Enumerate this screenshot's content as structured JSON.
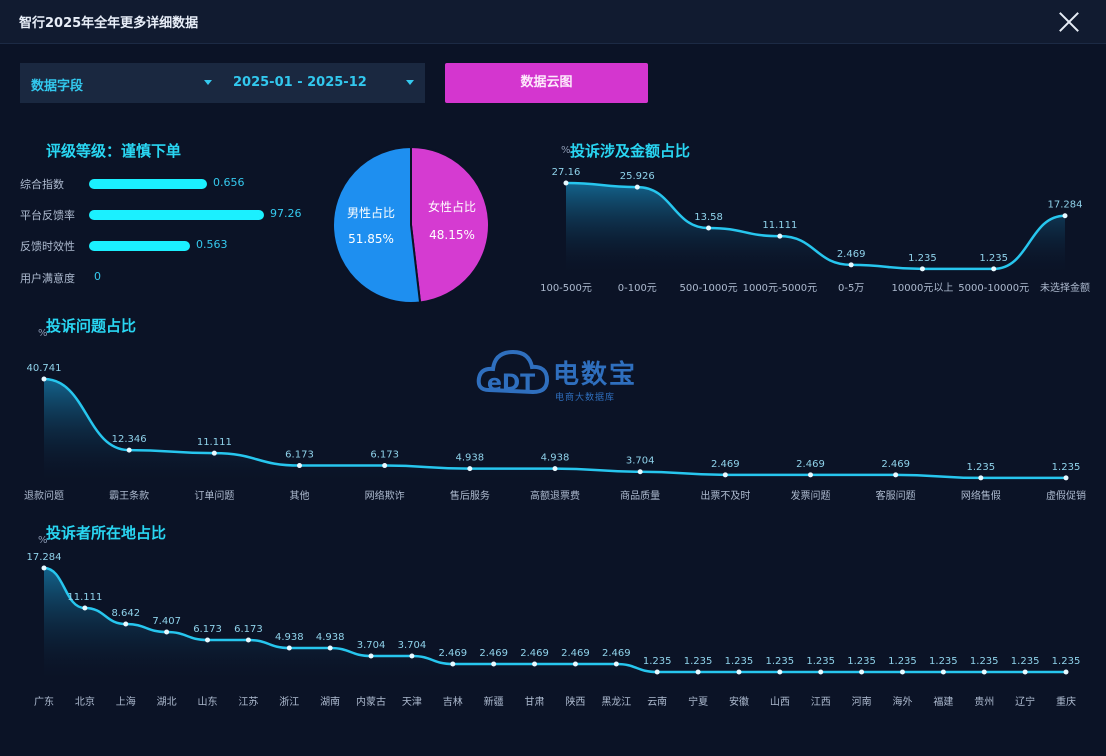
{
  "window": {
    "title": "智行2025年全年更多详细数据"
  },
  "filters": {
    "field_select": "数据字段",
    "date_range": "2025-01 - 2025-12",
    "cloud_button": "数据云图"
  },
  "rating": {
    "title": "评级等级：谨慎下单",
    "items": [
      {
        "label": "综合指数",
        "value": "0.656",
        "fraction": 0.656
      },
      {
        "label": "平台反馈率",
        "value": "97.26",
        "fraction": 0.9726
      },
      {
        "label": "反馈时效性",
        "value": "0.563",
        "fraction": 0.563
      },
      {
        "label": "用户满意度",
        "value": "0",
        "fraction": 0
      }
    ]
  },
  "gender": {
    "male_label": "男性占比",
    "male_value": "51.85%",
    "female_label": "女性占比",
    "female_value": "48.15%",
    "male_color": "#1e8ff0",
    "female_color": "#d53bd1"
  },
  "logo": {
    "brand": "电数宝",
    "sub": "电商大数据库",
    "mark": "eDT"
  },
  "chart_data": [
    {
      "type": "area",
      "title": "投诉涉及金额占比",
      "ylabel": "%",
      "categories": [
        "100-500元",
        "0-100元",
        "500-1000元",
        "1000元-5000元",
        "0-5万",
        "10000元以上",
        "5000-10000元",
        "未选择金额"
      ],
      "tick_labels_shown": [
        "100-500元",
        "0-100元",
        "500-1000元",
        "1000元-5000元",
        "0-5万",
        "10000元以上",
        "5000-10000元",
        "未选择金额"
      ],
      "values": [
        27.16,
        25.926,
        13.58,
        11.111,
        2.469,
        1.235,
        1.235,
        17.284
      ],
      "value_labels": [
        "27.16",
        "25.926",
        "13.58",
        "11.111",
        "2.469",
        "1.235",
        "1.235",
        "17.284"
      ],
      "color": "#27c6ee"
    },
    {
      "type": "area",
      "title": "投诉问题占比",
      "ylabel": "%",
      "categories": [
        "退款问题",
        "霸王条款",
        "订单问题",
        "其他",
        "网络欺诈",
        "售后服务",
        "高额退票费",
        "商品质量",
        "出票不及时",
        "发票问题",
        "客服问题",
        "网络售假",
        "虚假促销"
      ],
      "values": [
        40.741,
        12.346,
        11.111,
        6.173,
        6.173,
        4.938,
        4.938,
        3.704,
        2.469,
        2.469,
        2.469,
        1.235,
        1.235
      ],
      "value_labels": [
        "40.741",
        "12.346",
        "11.111",
        "6.173",
        "6.173",
        "4.938",
        "4.938",
        "3.704",
        "2.469",
        "2.469",
        "2.469",
        "1.235",
        "1.235"
      ],
      "color": "#27c6ee"
    },
    {
      "type": "area",
      "title": "投诉者所在地占比",
      "ylabel": "%",
      "categories": [
        "广东",
        "北京",
        "上海",
        "湖北",
        "山东",
        "江苏",
        "浙江",
        "湖南",
        "内蒙古",
        "天津",
        "吉林",
        "新疆",
        "甘肃",
        "陕西",
        "黑龙江",
        "云南",
        "宁夏",
        "安徽",
        "山西",
        "江西",
        "河南",
        "海外",
        "福建",
        "贵州",
        "辽宁",
        "重庆"
      ],
      "values": [
        17.284,
        11.111,
        8.642,
        7.407,
        6.173,
        6.173,
        4.938,
        4.938,
        3.704,
        3.704,
        2.469,
        2.469,
        2.469,
        2.469,
        2.469,
        1.235,
        1.235,
        1.235,
        1.235,
        1.235,
        1.235,
        1.235,
        1.235,
        1.235,
        1.235,
        1.235
      ],
      "value_labels": [
        "17.284",
        "11.111",
        "8.642",
        "7.407",
        "6.173",
        "6.173",
        "4.938",
        "4.938",
        "3.704",
        "3.704",
        "2.469",
        "2.469",
        "2.469",
        "2.469",
        "2.469",
        "1.235",
        "1.235",
        "1.235",
        "1.235",
        "1.235",
        "1.235",
        "1.235",
        "1.235",
        "1.235",
        "1.235",
        "1.235"
      ],
      "color": "#27c6ee"
    }
  ]
}
